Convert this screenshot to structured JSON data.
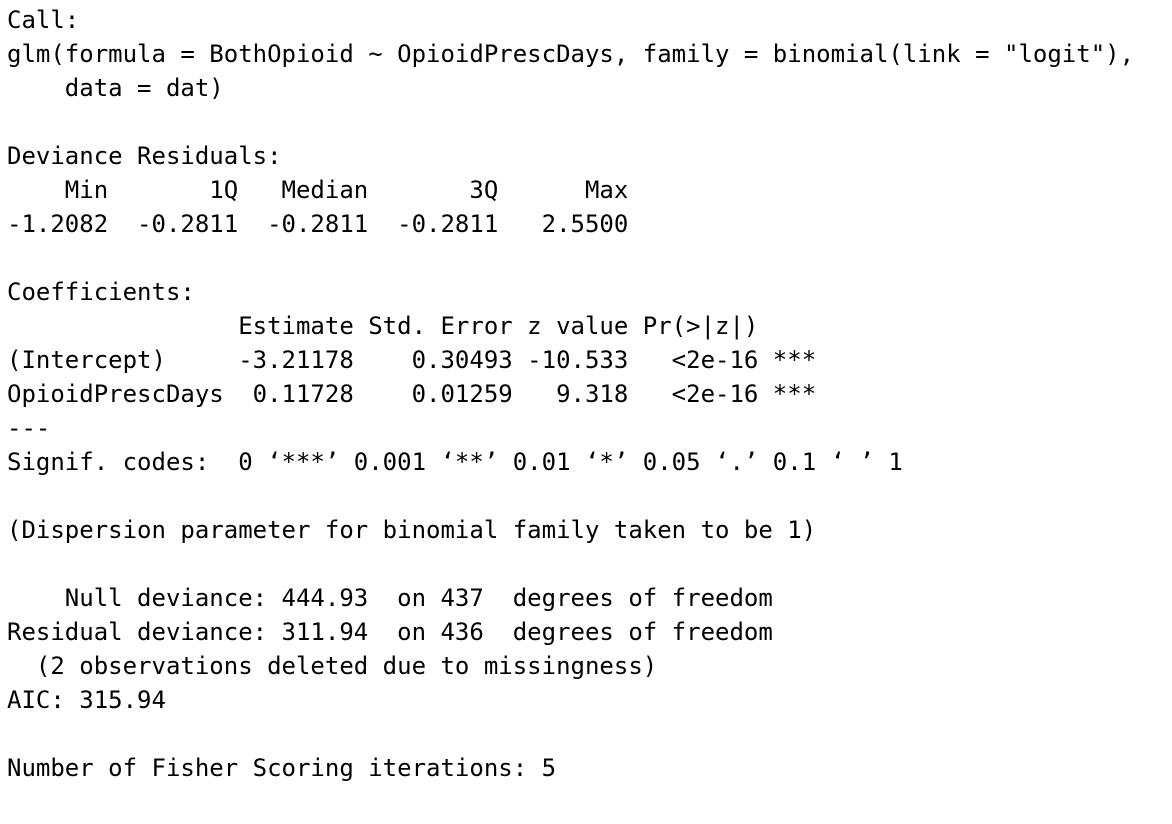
{
  "blocks": [
    {
      "lines": [
        "Call:",
        "glm(formula = BothOpioid ~ OpioidPrescDays, family = binomial(link = \"logit\"), ",
        "    data = dat)"
      ]
    },
    {
      "lines": [
        "Deviance Residuals: ",
        "    Min       1Q   Median       3Q      Max  ",
        "-1.2082  -0.2811  -0.2811  -0.2811   2.5500  "
      ]
    },
    {
      "lines": [
        "Coefficients:",
        "                Estimate Std. Error z value Pr(>|z|)    ",
        "(Intercept)     -3.21178    0.30493 -10.533   <2e-16 ***",
        "OpioidPrescDays  0.11728    0.01259   9.318   <2e-16 ***",
        "---",
        "Signif. codes:  0 ‘***’ 0.001 ‘**’ 0.01 ‘*’ 0.05 ‘.’ 0.1 ‘ ’ 1"
      ]
    },
    {
      "lines": [
        "(Dispersion parameter for binomial family taken to be 1)"
      ]
    },
    {
      "lines": [
        "    Null deviance: 444.93  on 437  degrees of freedom",
        "Residual deviance: 311.94  on 436  degrees of freedom",
        "  (2 observations deleted due to missingness)",
        "AIC: 315.94"
      ]
    },
    {
      "lines": [
        "Number of Fisher Scoring iterations: 5"
      ]
    }
  ]
}
